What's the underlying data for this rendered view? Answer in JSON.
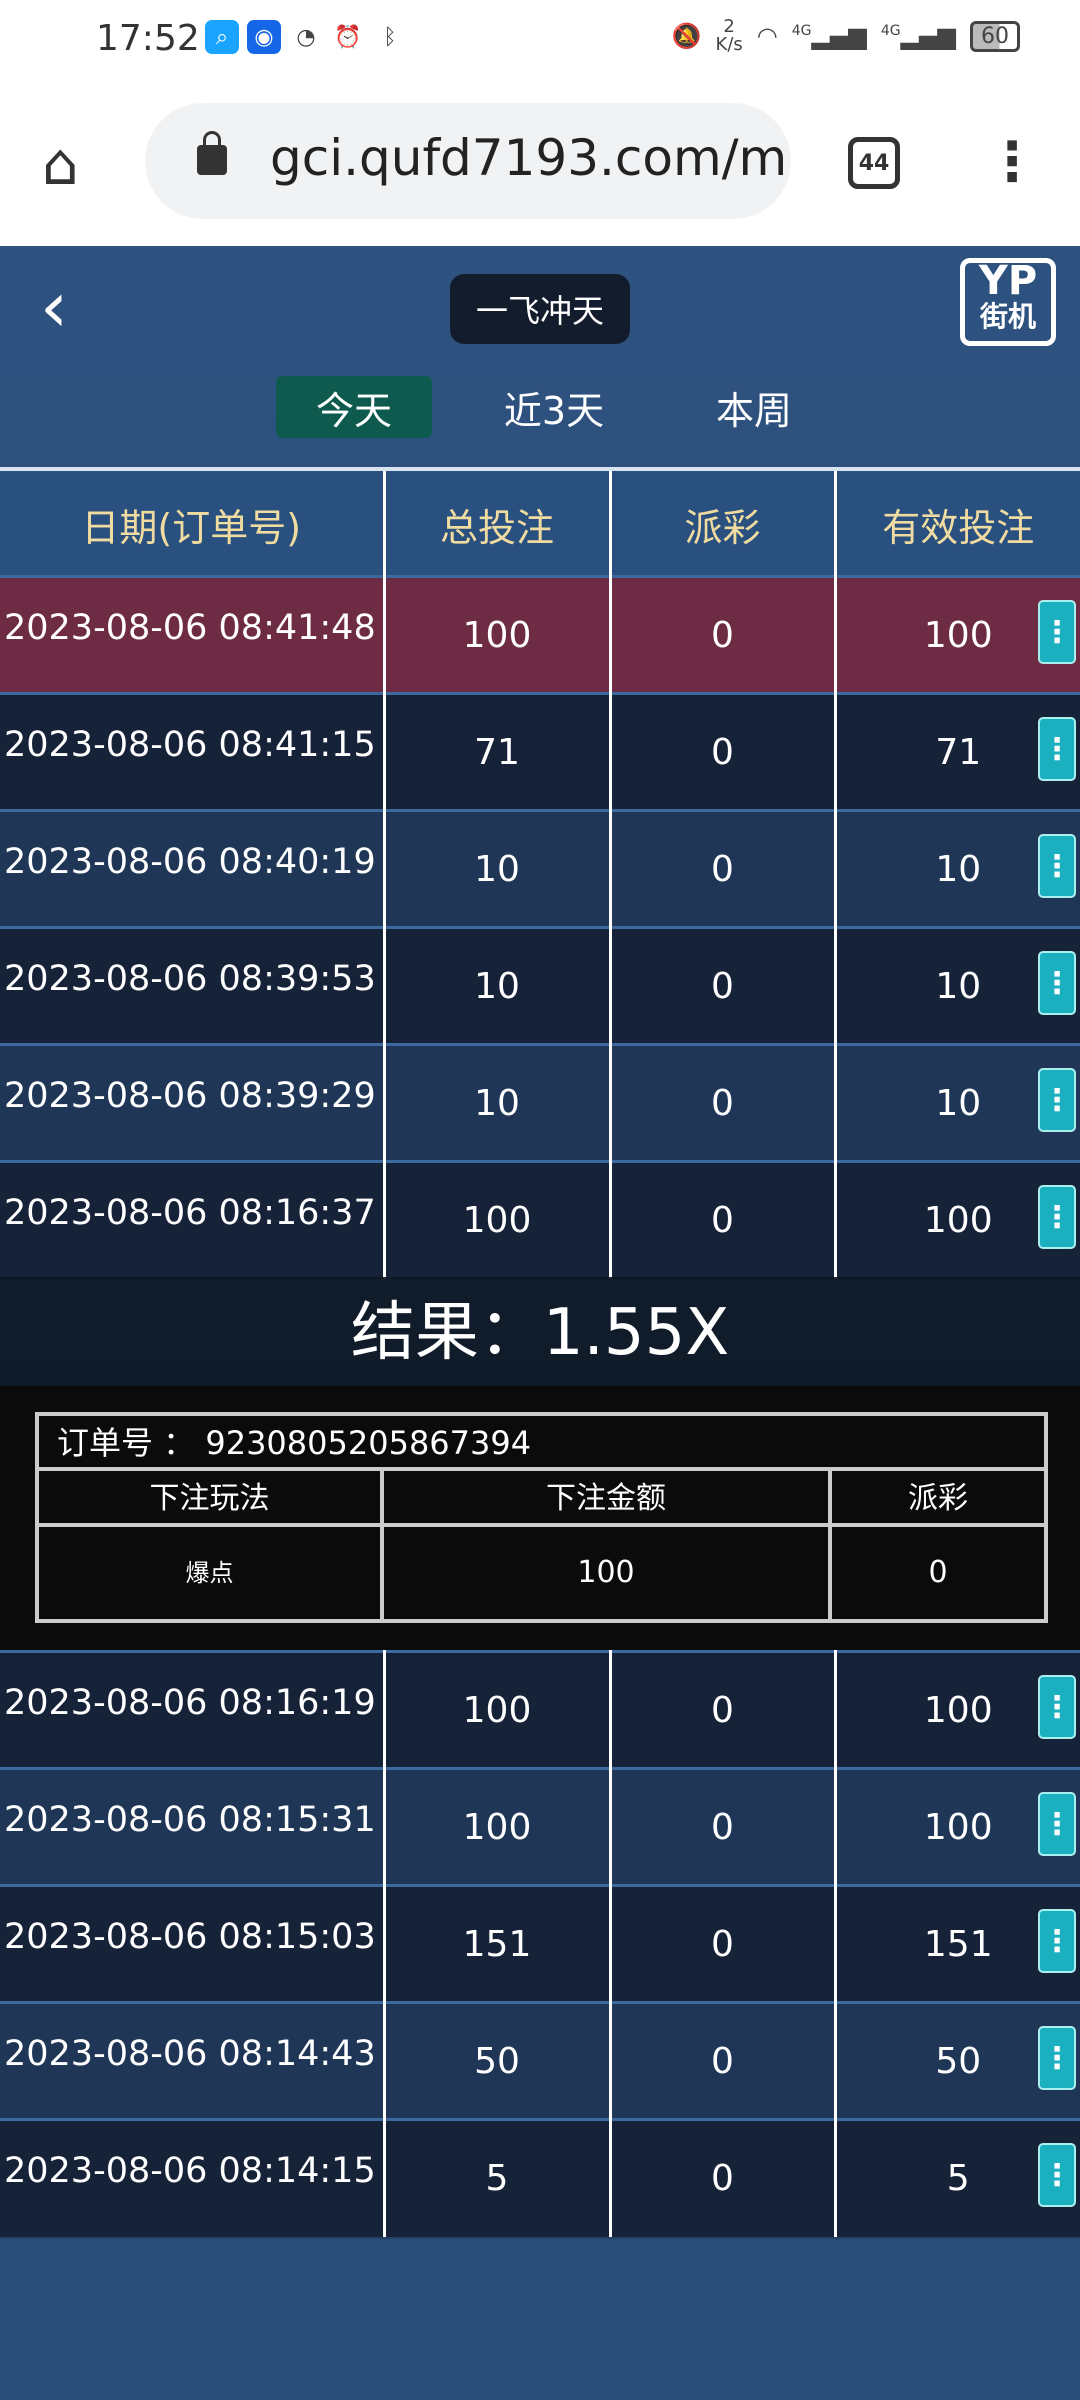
{
  "status_bar": {
    "time": "17:52",
    "speed_value": "2",
    "speed_unit": "K/s",
    "network": "4G",
    "battery": "60"
  },
  "browser": {
    "url": "gci.qufd7193.com/m",
    "tab_count": "44"
  },
  "header": {
    "title": "一飞冲天",
    "logo_top": "YP",
    "logo_bottom": "街机"
  },
  "period_tabs": [
    {
      "label": "今天",
      "active": true
    },
    {
      "label": "近3天",
      "active": false
    },
    {
      "label": "本周",
      "active": false
    }
  ],
  "table": {
    "headers": [
      "日期(订单号)",
      "总投注",
      "派彩",
      "有效投注"
    ],
    "rows_top": [
      [
        "2023-08-06 08:41:48",
        "100",
        "0",
        "100"
      ],
      [
        "2023-08-06 08:41:15",
        "71",
        "0",
        "71"
      ],
      [
        "2023-08-06 08:40:19",
        "10",
        "0",
        "10"
      ],
      [
        "2023-08-06 08:39:53",
        "10",
        "0",
        "10"
      ],
      [
        "2023-08-06 08:39:29",
        "10",
        "0",
        "10"
      ],
      [
        "2023-08-06 08:16:37",
        "100",
        "0",
        "100"
      ]
    ],
    "rows_bottom": [
      [
        "2023-08-06 08:16:19",
        "100",
        "0",
        "100"
      ],
      [
        "2023-08-06 08:15:31",
        "100",
        "0",
        "100"
      ],
      [
        "2023-08-06 08:15:03",
        "151",
        "0",
        "151"
      ],
      [
        "2023-08-06 08:14:43",
        "50",
        "0",
        "50"
      ],
      [
        "2023-08-06 08:14:15",
        "5",
        "0",
        "5"
      ]
    ]
  },
  "result": {
    "text": "结果：1.55X"
  },
  "detail": {
    "order_label": "订单号 ： 9230805205867394",
    "headers": [
      "下注玩法",
      "下注金额",
      "派彩"
    ],
    "values": [
      "爆点",
      "100",
      "0"
    ]
  },
  "colors": {
    "highlight_row": "#6e2c44",
    "menu_button": "#1ab0c0",
    "active_tab": "#0f5a4e"
  }
}
